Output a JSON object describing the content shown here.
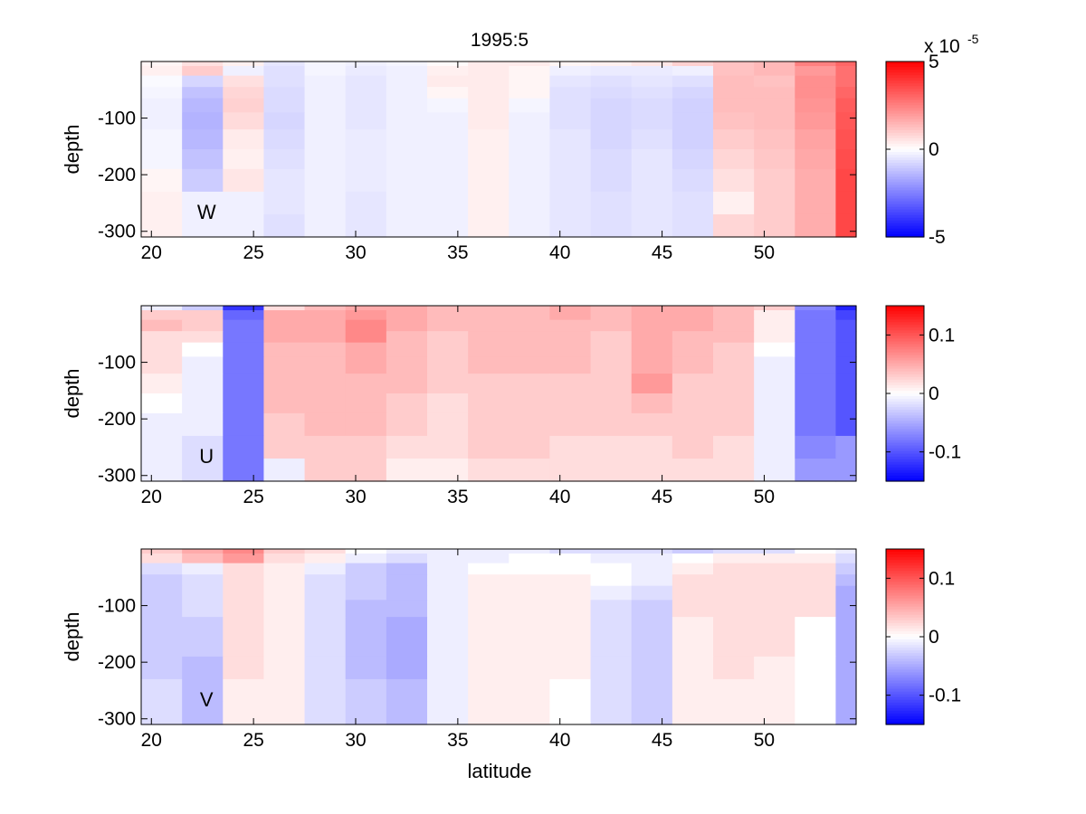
{
  "figure_title": "1995:5",
  "xlabel": "latitude",
  "chart_data": [
    {
      "type": "heatmap",
      "name": "w",
      "panel_label": "W",
      "ylabel": "depth",
      "x_range": [
        19.5,
        54.5
      ],
      "y_range": [
        -310,
        0
      ],
      "x_ticks": [
        20,
        25,
        30,
        35,
        40,
        45,
        50
      ],
      "y_ticks": [
        -100,
        -200,
        -300
      ],
      "clim": [
        -5,
        5
      ],
      "colorbar_ticks": [
        5,
        0,
        -5
      ],
      "colorbar_exponent": "x 10",
      "colorbar_exponent_power": "-5",
      "y_edges": [
        0,
        -8,
        -25,
        -45,
        -65,
        -90,
        -120,
        -155,
        -190,
        -230,
        -270,
        -310
      ],
      "x_edges": [
        19.5,
        21.5,
        23.5,
        25.5,
        27.5,
        29.5,
        31.5,
        33.5,
        35.5,
        37.5,
        39.5,
        41.5,
        43.5,
        45.5,
        47.5,
        49.5,
        51.5,
        53.5,
        54.5
      ],
      "values": [
        [
          0.2,
          0.6,
          0.3,
          -0.5,
          -0.2,
          -0.3,
          -0.2,
          0.1,
          0.4,
          0.4,
          0.2,
          0.3,
          0.5,
          0.9,
          1.2,
          1.4,
          2.5,
          3.0
        ],
        [
          0.3,
          1.0,
          -0.3,
          -0.6,
          -0.2,
          -0.4,
          -0.3,
          0.3,
          0.4,
          0.2,
          -0.3,
          -0.4,
          -0.4,
          -0.3,
          1.2,
          1.4,
          2.0,
          2.8
        ],
        [
          -0.1,
          -0.8,
          0.6,
          -0.6,
          -0.3,
          -0.5,
          -0.3,
          0.4,
          0.4,
          0.2,
          -0.5,
          -0.6,
          -0.5,
          -0.6,
          1.3,
          1.2,
          2.2,
          2.8
        ],
        [
          -0.2,
          -1.2,
          0.8,
          -0.7,
          -0.3,
          -0.5,
          -0.3,
          0.2,
          0.4,
          0.2,
          -0.6,
          -0.7,
          -0.6,
          -0.8,
          1.3,
          1.3,
          2.2,
          3.0
        ],
        [
          -0.3,
          -1.4,
          0.9,
          -0.7,
          -0.3,
          -0.5,
          -0.3,
          -0.2,
          0.4,
          -0.2,
          -0.6,
          -0.8,
          -0.7,
          -0.9,
          1.3,
          1.3,
          2.1,
          3.2
        ],
        [
          -0.3,
          -1.5,
          0.7,
          -0.8,
          -0.3,
          -0.5,
          -0.3,
          -0.3,
          0.4,
          -0.3,
          -0.6,
          -0.8,
          -0.7,
          -0.9,
          1.2,
          1.3,
          2.0,
          3.3
        ],
        [
          -0.2,
          -1.4,
          0.4,
          -0.7,
          -0.3,
          -0.4,
          -0.3,
          -0.3,
          0.3,
          -0.3,
          -0.5,
          -0.8,
          -0.6,
          -0.9,
          1.0,
          1.2,
          1.8,
          3.4
        ],
        [
          -0.2,
          -1.2,
          0.3,
          -0.6,
          -0.3,
          -0.4,
          -0.3,
          -0.3,
          0.3,
          -0.3,
          -0.5,
          -0.7,
          -0.5,
          -0.8,
          0.8,
          1.1,
          1.7,
          3.5
        ],
        [
          0.2,
          -1.0,
          0.5,
          -0.5,
          -0.3,
          -0.4,
          -0.3,
          -0.3,
          0.3,
          -0.3,
          -0.5,
          -0.7,
          -0.5,
          -0.7,
          0.6,
          1.0,
          1.6,
          3.6
        ],
        [
          0.3,
          -0.3,
          -0.3,
          -0.5,
          -0.3,
          -0.5,
          -0.3,
          -0.3,
          0.3,
          -0.3,
          -0.5,
          -0.6,
          -0.5,
          -0.6,
          0.3,
          1.0,
          1.6,
          3.6
        ],
        [
          0.3,
          -0.3,
          -0.3,
          -0.6,
          -0.3,
          -0.5,
          -0.3,
          -0.3,
          0.3,
          -0.3,
          -0.5,
          -0.6,
          -0.5,
          -0.6,
          0.8,
          1.0,
          1.6,
          3.6
        ]
      ]
    },
    {
      "type": "heatmap",
      "name": "u",
      "panel_label": "U",
      "ylabel": "depth",
      "x_range": [
        19.5,
        54.5
      ],
      "y_range": [
        -310,
        0
      ],
      "x_ticks": [
        20,
        25,
        30,
        35,
        40,
        45,
        50
      ],
      "y_ticks": [
        -100,
        -200,
        -300
      ],
      "clim": [
        -0.15,
        0.15
      ],
      "colorbar_ticks": [
        0.1,
        0,
        -0.1
      ],
      "colorbar_exponent": "",
      "colorbar_exponent_power": "",
      "y_edges": [
        0,
        -8,
        -25,
        -45,
        -65,
        -90,
        -120,
        -155,
        -190,
        -230,
        -270,
        -310
      ],
      "x_edges": [
        19.5,
        21.5,
        23.5,
        25.5,
        27.5,
        29.5,
        31.5,
        33.5,
        35.5,
        37.5,
        39.5,
        41.5,
        43.5,
        45.5,
        47.5,
        49.5,
        51.5,
        53.5,
        54.5
      ],
      "values": [
        [
          -0.01,
          -0.03,
          -0.12,
          0.02,
          0.04,
          0.05,
          0.05,
          0.04,
          0.04,
          0.04,
          0.05,
          0.04,
          0.05,
          0.05,
          0.04,
          0.03,
          -0.07,
          -0.13
        ],
        [
          0.03,
          0.03,
          -0.09,
          0.05,
          0.05,
          0.06,
          0.05,
          0.04,
          0.04,
          0.04,
          0.05,
          0.04,
          0.05,
          0.05,
          0.04,
          0.01,
          -0.08,
          -0.11
        ],
        [
          0.04,
          0.03,
          -0.08,
          0.05,
          0.05,
          0.07,
          0.05,
          0.04,
          0.04,
          0.04,
          0.04,
          0.04,
          0.05,
          0.05,
          0.04,
          0.01,
          -0.08,
          -0.1
        ],
        [
          0.02,
          0.02,
          -0.08,
          0.05,
          0.05,
          0.07,
          0.04,
          0.03,
          0.04,
          0.04,
          0.04,
          0.03,
          0.05,
          0.04,
          0.04,
          0.01,
          -0.08,
          -0.1
        ],
        [
          0.02,
          0.0,
          -0.08,
          0.04,
          0.04,
          0.05,
          0.04,
          0.03,
          0.04,
          0.04,
          0.04,
          0.03,
          0.05,
          0.04,
          0.03,
          0.0,
          -0.08,
          -0.1
        ],
        [
          0.02,
          -0.01,
          -0.08,
          0.04,
          0.04,
          0.05,
          0.04,
          0.03,
          0.04,
          0.04,
          0.04,
          0.03,
          0.05,
          0.04,
          0.03,
          -0.01,
          -0.08,
          -0.1
        ],
        [
          0.01,
          -0.01,
          -0.08,
          0.04,
          0.04,
          0.04,
          0.04,
          0.03,
          0.03,
          0.03,
          0.03,
          0.03,
          0.06,
          0.03,
          0.03,
          -0.01,
          -0.08,
          -0.1
        ],
        [
          0.0,
          -0.01,
          -0.08,
          0.04,
          0.04,
          0.04,
          0.03,
          0.02,
          0.03,
          0.03,
          0.03,
          0.03,
          0.04,
          0.03,
          0.03,
          -0.01,
          -0.08,
          -0.1
        ],
        [
          -0.01,
          -0.01,
          -0.08,
          0.03,
          0.04,
          0.04,
          0.03,
          0.02,
          0.03,
          0.03,
          0.03,
          0.03,
          0.03,
          0.03,
          0.03,
          -0.01,
          -0.08,
          -0.1
        ],
        [
          -0.01,
          -0.02,
          -0.08,
          0.03,
          0.03,
          0.03,
          0.02,
          0.02,
          0.03,
          0.03,
          0.02,
          0.02,
          0.02,
          0.03,
          0.02,
          -0.01,
          -0.07,
          -0.06
        ],
        [
          -0.01,
          -0.02,
          -0.08,
          -0.01,
          0.03,
          0.03,
          0.01,
          0.01,
          0.02,
          0.02,
          0.02,
          0.02,
          0.02,
          0.02,
          0.02,
          -0.01,
          -0.06,
          -0.06
        ]
      ]
    },
    {
      "type": "heatmap",
      "name": "v",
      "panel_label": "V",
      "ylabel": "depth",
      "x_range": [
        19.5,
        54.5
      ],
      "y_range": [
        -310,
        0
      ],
      "x_ticks": [
        20,
        25,
        30,
        35,
        40,
        45,
        50
      ],
      "y_ticks": [
        -100,
        -200,
        -300
      ],
      "clim": [
        -0.15,
        0.15
      ],
      "colorbar_ticks": [
        0.1,
        0,
        -0.1
      ],
      "colorbar_exponent": "",
      "colorbar_exponent_power": "",
      "y_edges": [
        0,
        -8,
        -25,
        -45,
        -65,
        -90,
        -120,
        -155,
        -190,
        -230,
        -270,
        -310
      ],
      "x_edges": [
        19.5,
        21.5,
        23.5,
        25.5,
        27.5,
        29.5,
        31.5,
        33.5,
        35.5,
        37.5,
        39.5,
        41.5,
        43.5,
        45.5,
        47.5,
        49.5,
        51.5,
        53.5,
        54.5
      ],
      "values": [
        [
          0.03,
          0.05,
          0.07,
          0.03,
          0.02,
          0.0,
          -0.01,
          -0.01,
          -0.01,
          -0.01,
          -0.02,
          -0.02,
          -0.02,
          -0.03,
          -0.02,
          -0.02,
          0.0,
          -0.01
        ],
        [
          0.02,
          0.04,
          0.06,
          0.02,
          0.01,
          -0.01,
          -0.02,
          -0.01,
          -0.01,
          0.0,
          0.0,
          -0.01,
          -0.01,
          0.0,
          0.01,
          0.01,
          0.01,
          -0.02
        ],
        [
          -0.02,
          -0.01,
          0.02,
          0.01,
          -0.01,
          -0.03,
          -0.04,
          -0.01,
          0.0,
          0.0,
          0.0,
          0.0,
          -0.01,
          0.01,
          0.02,
          0.02,
          0.02,
          -0.03
        ],
        [
          -0.03,
          -0.02,
          0.02,
          0.01,
          -0.02,
          -0.03,
          -0.04,
          -0.01,
          0.01,
          0.01,
          0.01,
          0.0,
          -0.01,
          0.02,
          0.02,
          0.02,
          0.02,
          -0.04
        ],
        [
          -0.03,
          -0.02,
          0.02,
          0.01,
          -0.02,
          -0.03,
          -0.04,
          -0.01,
          0.01,
          0.01,
          0.01,
          -0.01,
          -0.02,
          0.02,
          0.02,
          0.02,
          0.02,
          -0.05
        ],
        [
          -0.03,
          -0.02,
          0.02,
          0.01,
          -0.02,
          -0.04,
          -0.04,
          -0.01,
          0.01,
          0.01,
          0.01,
          -0.02,
          -0.03,
          0.02,
          0.02,
          0.02,
          0.02,
          -0.05
        ],
        [
          -0.03,
          -0.03,
          0.02,
          0.01,
          -0.02,
          -0.04,
          -0.05,
          -0.01,
          0.01,
          0.01,
          0.01,
          -0.02,
          -0.03,
          0.01,
          0.02,
          0.02,
          0.0,
          -0.05
        ],
        [
          -0.03,
          -0.03,
          0.02,
          0.01,
          -0.02,
          -0.04,
          -0.05,
          -0.01,
          0.01,
          0.01,
          0.01,
          -0.02,
          -0.03,
          0.01,
          0.02,
          0.02,
          0.0,
          -0.05
        ],
        [
          -0.03,
          -0.04,
          0.02,
          0.01,
          -0.02,
          -0.04,
          -0.05,
          -0.01,
          0.01,
          0.01,
          0.01,
          -0.02,
          -0.03,
          0.01,
          0.02,
          0.01,
          0.0,
          -0.05
        ],
        [
          -0.02,
          -0.04,
          0.01,
          0.01,
          -0.02,
          -0.03,
          -0.04,
          -0.01,
          0.01,
          0.01,
          0.0,
          -0.02,
          -0.03,
          0.01,
          0.01,
          0.01,
          0.0,
          -0.05
        ],
        [
          -0.02,
          -0.04,
          0.01,
          0.01,
          -0.02,
          -0.03,
          -0.04,
          -0.01,
          0.01,
          0.01,
          0.0,
          -0.02,
          -0.03,
          0.01,
          0.01,
          0.01,
          0.0,
          -0.05
        ]
      ]
    }
  ]
}
